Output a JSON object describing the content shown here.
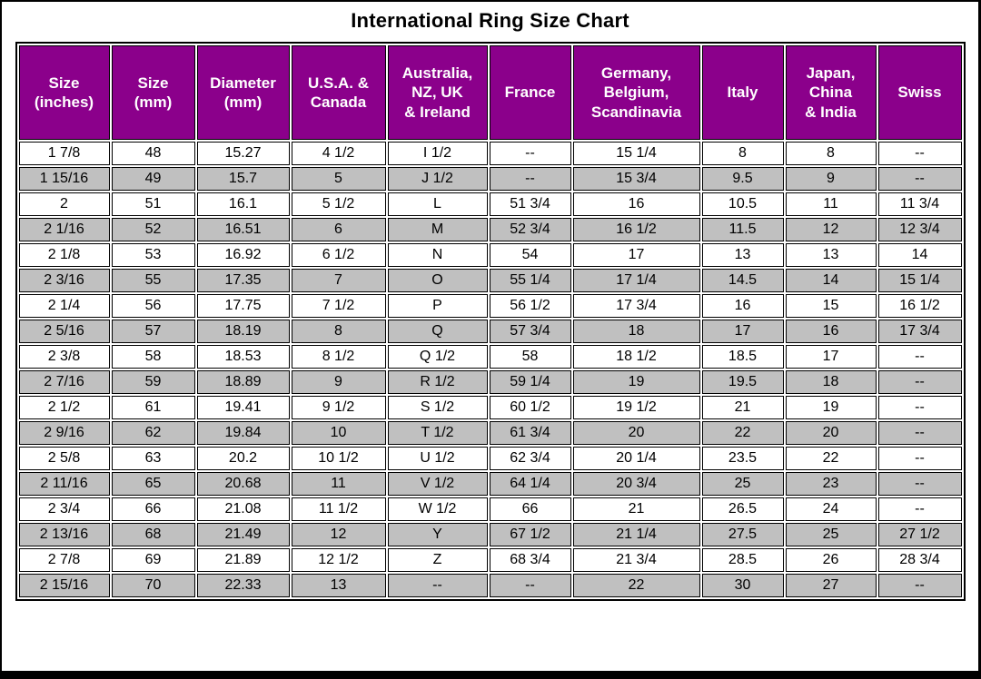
{
  "title": "International Ring Size Chart",
  "colors": {
    "header_bg": "#8B008B",
    "header_text": "#FFFFFF",
    "row_alt_bg": "#C0C0C0",
    "row_bg": "#FFFFFF",
    "grid": "#000000"
  },
  "chart_data": {
    "type": "table",
    "title": "International Ring Size Chart",
    "legend_position": "none",
    "grid": true,
    "columns": [
      "Size\n(inches)",
      "Size\n(mm)",
      "Diameter\n(mm)",
      "U.S.A. &\nCanada",
      "Australia,\nNZ, UK\n& Ireland",
      "France",
      "Germany,\nBelgium,\nScandinavia",
      "Italy",
      "Japan,\nChina\n& India",
      "Swiss"
    ],
    "rows": [
      [
        "1 7/8",
        "48",
        "15.27",
        "4 1/2",
        "I 1/2",
        "--",
        "15 1/4",
        "8",
        "8",
        "--"
      ],
      [
        "1 15/16",
        "49",
        "15.7",
        "5",
        "J 1/2",
        "--",
        "15 3/4",
        "9.5",
        "9",
        "--"
      ],
      [
        "2",
        "51",
        "16.1",
        "5 1/2",
        "L",
        "51 3/4",
        "16",
        "10.5",
        "11",
        "11 3/4"
      ],
      [
        "2 1/16",
        "52",
        "16.51",
        "6",
        "M",
        "52 3/4",
        "16 1/2",
        "11.5",
        "12",
        "12 3/4"
      ],
      [
        "2 1/8",
        "53",
        "16.92",
        "6 1/2",
        "N",
        "54",
        "17",
        "13",
        "13",
        "14"
      ],
      [
        "2 3/16",
        "55",
        "17.35",
        "7",
        "O",
        "55 1/4",
        "17 1/4",
        "14.5",
        "14",
        "15 1/4"
      ],
      [
        "2 1/4",
        "56",
        "17.75",
        "7 1/2",
        "P",
        "56 1/2",
        "17 3/4",
        "16",
        "15",
        "16 1/2"
      ],
      [
        "2 5/16",
        "57",
        "18.19",
        "8",
        "Q",
        "57 3/4",
        "18",
        "17",
        "16",
        "17 3/4"
      ],
      [
        "2 3/8",
        "58",
        "18.53",
        "8 1/2",
        "Q 1/2",
        "58",
        "18 1/2",
        "18.5",
        "17",
        "--"
      ],
      [
        "2 7/16",
        "59",
        "18.89",
        "9",
        "R 1/2",
        "59 1/4",
        "19",
        "19.5",
        "18",
        "--"
      ],
      [
        "2 1/2",
        "61",
        "19.41",
        "9 1/2",
        "S 1/2",
        "60 1/2",
        "19 1/2",
        "21",
        "19",
        "--"
      ],
      [
        "2 9/16",
        "62",
        "19.84",
        "10",
        "T 1/2",
        "61 3/4",
        "20",
        "22",
        "20",
        "--"
      ],
      [
        "2 5/8",
        "63",
        "20.2",
        "10 1/2",
        "U 1/2",
        "62 3/4",
        "20 1/4",
        "23.5",
        "22",
        "--"
      ],
      [
        "2 11/16",
        "65",
        "20.68",
        "11",
        "V 1/2",
        "64 1/4",
        "20 3/4",
        "25",
        "23",
        "--"
      ],
      [
        "2 3/4",
        "66",
        "21.08",
        "11 1/2",
        "W 1/2",
        "66",
        "21",
        "26.5",
        "24",
        "--"
      ],
      [
        "2 13/16",
        "68",
        "21.49",
        "12",
        "Y",
        "67 1/2",
        "21 1/4",
        "27.5",
        "25",
        "27 1/2"
      ],
      [
        "2 7/8",
        "69",
        "21.89",
        "12 1/2",
        "Z",
        "68 3/4",
        "21 3/4",
        "28.5",
        "26",
        "28 3/4"
      ],
      [
        "2 15/16",
        "70",
        "22.33",
        "13",
        "--",
        "--",
        "22",
        "30",
        "27",
        "--"
      ]
    ]
  }
}
